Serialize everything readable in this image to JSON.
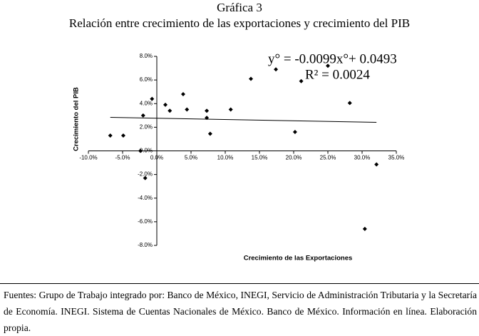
{
  "chart_data": {
    "type": "scatter",
    "title": "Gráfica 3",
    "subtitle": "Relación entre crecimiento de las exportaciones y crecimiento del PIB",
    "xlabel": "Crecimiento de las Exportaciones",
    "ylabel": "Crecimiento del PIB",
    "annotations": [
      "y° = -0.0099x°+ 0.0493",
      "R² = 0.0024"
    ],
    "x": [
      -6.8,
      -4.9,
      -2.4,
      -2.0,
      -1.7,
      -0.7,
      1.25,
      1.9,
      3.85,
      4.4,
      7.3,
      7.3,
      7.8,
      10.8,
      13.75,
      17.4,
      20.2,
      21.1,
      25.0,
      28.2,
      30.4,
      32.1
    ],
    "values": [
      1.3,
      1.3,
      0.0,
      3.0,
      -2.3,
      4.4,
      3.9,
      3.4,
      4.8,
      3.5,
      3.4,
      2.8,
      1.45,
      3.5,
      6.1,
      6.9,
      1.6,
      5.9,
      7.2,
      4.05,
      -6.6,
      -1.15
    ],
    "color": "#000000",
    "trendline": true,
    "xlim": [
      -10,
      35
    ],
    "ylim": [
      -8,
      8
    ],
    "xticks": [
      {
        "value": -10,
        "label": "-10.0%"
      },
      {
        "value": -5,
        "label": "-5.0%"
      },
      {
        "value": 0,
        "label": "0.0%"
      },
      {
        "value": 5,
        "label": "5.0%"
      },
      {
        "value": 10,
        "label": "10.0%"
      },
      {
        "value": 15,
        "label": "15.0%"
      },
      {
        "value": 20,
        "label": "20.0%"
      },
      {
        "value": 25,
        "label": "25.0%"
      },
      {
        "value": 30,
        "label": "30.0%"
      },
      {
        "value": 35,
        "label": "35.0%"
      }
    ],
    "yticks": [
      {
        "value": -8,
        "label": "-8.0%"
      },
      {
        "value": -6,
        "label": "-6.0%"
      },
      {
        "value": -4,
        "label": "-4.0%"
      },
      {
        "value": -2,
        "label": "-2.0%"
      },
      {
        "value": 0,
        "label": "0.0%"
      },
      {
        "value": 2,
        "label": "2.0%"
      },
      {
        "value": 4,
        "label": "4.0%"
      },
      {
        "value": 6,
        "label": "6.0%"
      },
      {
        "value": 8,
        "label": "8.0%"
      }
    ],
    "grid": false,
    "note": "Fuentes: Grupo de Trabajo integrado por: Banco de México, INEGI, Servicio de Administración Tributaria y la Secretaría de Economía. INEGI. Sistema de Cuentas Nacionales de México. Banco de México. Información en línea. Elaboración propia."
  }
}
